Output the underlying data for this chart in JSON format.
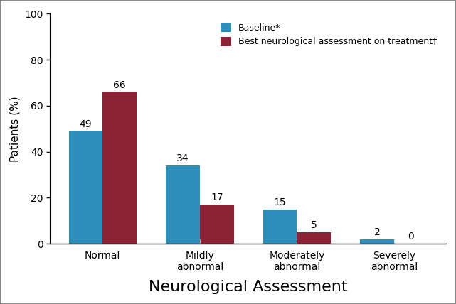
{
  "categories": [
    "Normal",
    "Mildly\nabnormal",
    "Moderately\nabnormal",
    "Severely\nabnormal"
  ],
  "baseline": [
    49,
    34,
    15,
    2
  ],
  "treatment": [
    66,
    17,
    5,
    0
  ],
  "baseline_color": "#2E8FBB",
  "treatment_color": "#8B2235",
  "xlabel": "Neurological Assessment",
  "ylabel": "Patients (%)",
  "ylim": [
    0,
    100
  ],
  "yticks": [
    0,
    20,
    40,
    60,
    80,
    100
  ],
  "legend_labels": [
    "Baseline*",
    "Best neurological assessment on treatment†"
  ],
  "bar_width": 0.35,
  "background_color": "#FFFFFF",
  "border_color": "#AAAAAA",
  "label_fontsize": 10,
  "xlabel_fontsize": 16,
  "ylabel_fontsize": 11,
  "tick_fontsize": 10
}
